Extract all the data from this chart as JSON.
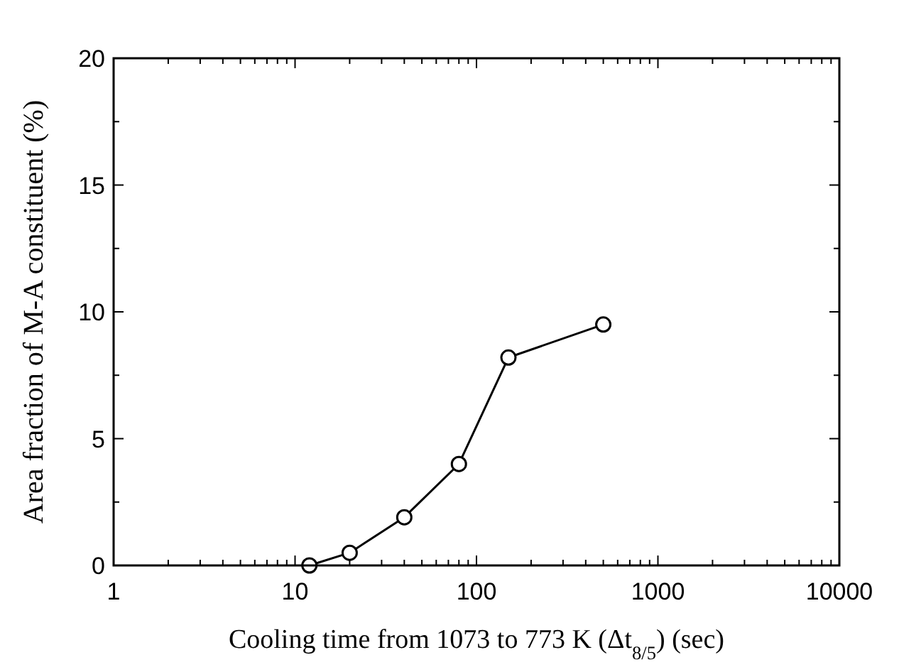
{
  "chart_data": {
    "type": "line",
    "xlabel": "Cooling time from 1073 to 773 K (Δt$_{8/5}$) (sec)",
    "ylabel": "Area fraction of M-A constituent (%)",
    "log": "x",
    "x": [
      12,
      20,
      40,
      80,
      150,
      500
    ],
    "series": [
      {
        "color": "#000000",
        "values": [
          0,
          0.5,
          1.9,
          4.0,
          8.2,
          9.5
        ]
      }
    ],
    "xlim": [
      1,
      10000
    ],
    "xticks": [
      1,
      10,
      100,
      1000,
      10000
    ],
    "ylim": [
      0,
      20
    ],
    "yticks": [
      0,
      5,
      10,
      15,
      20
    ],
    "marker": "circle",
    "line_style": "solid",
    "grid": false
  }
}
